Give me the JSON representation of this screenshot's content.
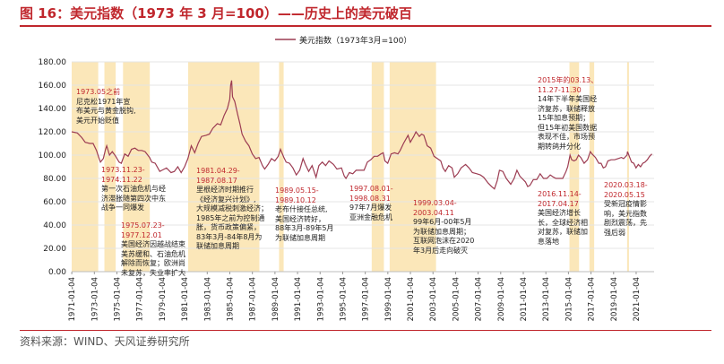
{
  "title": "图 16：美元指数（1973 年 3 月=100）——历史上的美元破百",
  "source": "资料来源：WIND、天风证券研究所",
  "colors": {
    "line": "#9c3c52",
    "shade": "#fbe7b9",
    "title": "#c0272d",
    "period": "#c0272d"
  },
  "annotations": [
    {
      "id": "a1",
      "period": "1973.05之前",
      "lines": [
        "尼克松1971年宣",
        "布美元与黄金脱钩,",
        "美元开始贬值"
      ]
    },
    {
      "id": "a2",
      "period": "1973.11.23-\n1974.11.22",
      "lines": [
        "第一次石油危机与经",
        "济滞胀随第四次中东",
        "战争一同爆发"
      ]
    },
    {
      "id": "a3",
      "period": "1975.07.23-\n1977.12.01",
      "lines": [
        "美国经济因越战结束",
        "美苏缓和、石油危机",
        "解除而恢复；欧洲尚",
        "未复苏，失业率扩大"
      ]
    },
    {
      "id": "a4",
      "period": "1981.04.29-\n1987.08.17",
      "lines": [
        "里根经济时期推行",
        "《经济复兴计划》,",
        "大规模减税刺激经济；",
        "1985年之前为控制通",
        "胀，货币政策偏紧，",
        "83年3月-84年8月为",
        "联储加息周期"
      ]
    },
    {
      "id": "a5",
      "period": "1989.05.15-\n1989.10.12",
      "lines": [
        "老布什接任总统,",
        "美国经济转好，",
        "88年3月-89年5月",
        "为联储加息周期"
      ]
    },
    {
      "id": "a6",
      "period": "1997.08.01-\n1998.08.31",
      "lines": [
        "97年7月爆发",
        "亚洲金融危机"
      ]
    },
    {
      "id": "a7",
      "period": "1999.03.04-\n2003.04.11",
      "lines": [
        "99年6月-00年5月",
        "为联储加息周期；",
        "互联网泡沫在2020",
        "年3月后走向破灭"
      ]
    },
    {
      "id": "a8",
      "period": "2015年的03.13、\n11.27-11.30",
      "lines": [
        "14年下半年美国经",
        "济复苏，联储释放",
        "15年加息预期；",
        "但15年初美国数据",
        "表现不佳，市场预",
        "期转鸽并分化"
      ]
    },
    {
      "id": "a9",
      "period": "2016.11.14-\n2017.04.17",
      "lines": [
        "美国经济增长",
        "长，全球经济相",
        "对复苏，联储加",
        "息落地"
      ]
    },
    {
      "id": "a10",
      "period": "2020.03.18-\n2020.05.15",
      "lines": [
        "受新冠疫情影",
        "响，美元指数",
        "剧烈震荡，先",
        "强后弱"
      ]
    }
  ],
  "chart_data": {
    "type": "line",
    "title": "美元指数（1973年3月=100）",
    "legend": [
      "美元指数（1973年3月=100）"
    ],
    "legend_position": "top-center",
    "xlabel": "",
    "ylabel": "",
    "ylim": [
      0,
      180
    ],
    "yticks": [
      0,
      20,
      40,
      60,
      80,
      100,
      120,
      140,
      160,
      180
    ],
    "ytick_labels": [
      "0.00",
      "20.00",
      "40.00",
      "60.00",
      "80.00",
      "100.00",
      "120.00",
      "140.00",
      "160.00",
      "180.00"
    ],
    "xlim": [
      1971.0,
      2022.6
    ],
    "xticks": [
      "1971-01-04",
      "1973-01-04",
      "1975-01-04",
      "1977-01-04",
      "1979-01-04",
      "1981-01-04",
      "1983-01-04",
      "1985-01-04",
      "1987-01-04",
      "1989-01-04",
      "1991-01-04",
      "1993-01-04",
      "1995-01-04",
      "1997-01-04",
      "1999-01-04",
      "2001-01-04",
      "2003-01-04",
      "2005-01-04",
      "2007-01-04",
      "2009-01-04",
      "2011-01-04",
      "2013-01-04",
      "2015-01-04",
      "2017-01-04",
      "2019-01-04",
      "2021-01-04"
    ],
    "shaded_periods": [
      {
        "start": 1971.0,
        "end": 1973.35,
        "label": "1973.05之前"
      },
      {
        "start": 1973.9,
        "end": 1974.9,
        "label": "1973.11.23-1974.11.22"
      },
      {
        "start": 1975.55,
        "end": 1977.92,
        "label": "1975.07.23-1977.12.01"
      },
      {
        "start": 1981.32,
        "end": 1987.63,
        "label": "1981.04.29-1987.08.17"
      },
      {
        "start": 1989.37,
        "end": 1989.78,
        "label": "1989.05.15-1989.10.12"
      },
      {
        "start": 1997.58,
        "end": 1998.66,
        "label": "1997.08.01-1998.08.31"
      },
      {
        "start": 1999.17,
        "end": 2003.28,
        "label": "1999.03.04-2003.04.11"
      },
      {
        "start": 2015.1,
        "end": 2015.95,
        "label": "2015.03.13、11.27-11.30"
      },
      {
        "start": 2016.87,
        "end": 2017.29,
        "label": "2016.11.14-2017.04.17"
      },
      {
        "start": 2020.21,
        "end": 2020.37,
        "label": "2020.03.18-2020.05.15"
      }
    ],
    "series": [
      {
        "name": "美元指数（1973年3月=100）",
        "points": [
          [
            1971.0,
            120
          ],
          [
            1971.5,
            119
          ],
          [
            1971.9,
            115
          ],
          [
            1972.2,
            111
          ],
          [
            1972.6,
            110
          ],
          [
            1972.9,
            110
          ],
          [
            1973.2,
            104
          ],
          [
            1973.4,
            98
          ],
          [
            1973.55,
            94
          ],
          [
            1973.8,
            97
          ],
          [
            1974.0,
            105
          ],
          [
            1974.1,
            108
          ],
          [
            1974.35,
            100
          ],
          [
            1974.6,
            103
          ],
          [
            1974.9,
            99
          ],
          [
            1975.2,
            94
          ],
          [
            1975.4,
            93
          ],
          [
            1975.7,
            101
          ],
          [
            1976.0,
            99
          ],
          [
            1976.3,
            105
          ],
          [
            1976.6,
            106
          ],
          [
            1976.9,
            104
          ],
          [
            1977.2,
            104
          ],
          [
            1977.5,
            103
          ],
          [
            1977.9,
            98
          ],
          [
            1978.1,
            94
          ],
          [
            1978.4,
            93
          ],
          [
            1978.8,
            86
          ],
          [
            1979.0,
            87
          ],
          [
            1979.4,
            89
          ],
          [
            1979.8,
            85
          ],
          [
            1980.1,
            86
          ],
          [
            1980.4,
            90
          ],
          [
            1980.7,
            85
          ],
          [
            1981.0,
            90
          ],
          [
            1981.3,
            97
          ],
          [
            1981.6,
            108
          ],
          [
            1981.9,
            102
          ],
          [
            1982.2,
            110
          ],
          [
            1982.5,
            116
          ],
          [
            1982.9,
            117
          ],
          [
            1983.2,
            118
          ],
          [
            1983.5,
            123
          ],
          [
            1983.9,
            127
          ],
          [
            1984.2,
            126
          ],
          [
            1984.5,
            134
          ],
          [
            1984.8,
            140
          ],
          [
            1985.0,
            148
          ],
          [
            1985.08,
            160
          ],
          [
            1985.17,
            164
          ],
          [
            1985.25,
            150
          ],
          [
            1985.45,
            146
          ],
          [
            1985.7,
            135
          ],
          [
            1985.9,
            127
          ],
          [
            1986.1,
            118
          ],
          [
            1986.4,
            112
          ],
          [
            1986.7,
            108
          ],
          [
            1987.0,
            101
          ],
          [
            1987.3,
            97
          ],
          [
            1987.6,
            98
          ],
          [
            1987.9,
            91
          ],
          [
            1988.1,
            88
          ],
          [
            1988.4,
            92
          ],
          [
            1988.7,
            97
          ],
          [
            1989.0,
            95
          ],
          [
            1989.3,
            99
          ],
          [
            1989.5,
            105
          ],
          [
            1989.8,
            98
          ],
          [
            1990.0,
            94
          ],
          [
            1990.3,
            93
          ],
          [
            1990.6,
            89
          ],
          [
            1990.9,
            83
          ],
          [
            1991.2,
            87
          ],
          [
            1991.5,
            97
          ],
          [
            1991.7,
            92
          ],
          [
            1992.0,
            86
          ],
          [
            1992.3,
            91
          ],
          [
            1992.65,
            81
          ],
          [
            1992.9,
            91
          ],
          [
            1993.2,
            94
          ],
          [
            1993.5,
            91
          ],
          [
            1993.8,
            95
          ],
          [
            1994.2,
            92
          ],
          [
            1994.5,
            88
          ],
          [
            1994.9,
            89
          ],
          [
            1995.15,
            82
          ],
          [
            1995.3,
            80
          ],
          [
            1995.6,
            85
          ],
          [
            1995.9,
            84
          ],
          [
            1996.2,
            87
          ],
          [
            1996.6,
            87
          ],
          [
            1996.9,
            87
          ],
          [
            1997.2,
            94
          ],
          [
            1997.5,
            96
          ],
          [
            1997.8,
            99
          ],
          [
            1998.1,
            99
          ],
          [
            1998.4,
            101
          ],
          [
            1998.6,
            102
          ],
          [
            1998.75,
            95
          ],
          [
            1999.0,
            93
          ],
          [
            1999.3,
            101
          ],
          [
            1999.6,
            102
          ],
          [
            1999.9,
            101
          ],
          [
            2000.1,
            104
          ],
          [
            2000.4,
            110
          ],
          [
            2000.8,
            117
          ],
          [
            2001.0,
            111
          ],
          [
            2001.3,
            116
          ],
          [
            2001.5,
            120
          ],
          [
            2001.8,
            116
          ],
          [
            2002.0,
            118
          ],
          [
            2002.2,
            117
          ],
          [
            2002.5,
            108
          ],
          [
            2002.8,
            106
          ],
          [
            2003.1,
            99
          ],
          [
            2003.4,
            97
          ],
          [
            2003.7,
            95
          ],
          [
            2003.9,
            89
          ],
          [
            2004.1,
            86
          ],
          [
            2004.4,
            91
          ],
          [
            2004.7,
            89
          ],
          [
            2004.9,
            81
          ],
          [
            2005.2,
            84
          ],
          [
            2005.5,
            89
          ],
          [
            2005.9,
            92
          ],
          [
            2006.2,
            89
          ],
          [
            2006.5,
            85
          ],
          [
            2006.9,
            84
          ],
          [
            2007.2,
            83
          ],
          [
            2007.5,
            81
          ],
          [
            2007.9,
            76
          ],
          [
            2008.2,
            73
          ],
          [
            2008.45,
            71
          ],
          [
            2008.7,
            78
          ],
          [
            2008.9,
            87
          ],
          [
            2009.2,
            86
          ],
          [
            2009.5,
            80
          ],
          [
            2009.9,
            75
          ],
          [
            2010.2,
            80
          ],
          [
            2010.45,
            87
          ],
          [
            2010.7,
            82
          ],
          [
            2010.9,
            80
          ],
          [
            2011.2,
            77
          ],
          [
            2011.4,
            73
          ],
          [
            2011.6,
            74
          ],
          [
            2011.9,
            79
          ],
          [
            2012.2,
            79
          ],
          [
            2012.5,
            84
          ],
          [
            2012.8,
            80
          ],
          [
            2013.1,
            80
          ],
          [
            2013.4,
            83
          ],
          [
            2013.7,
            81
          ],
          [
            2013.9,
            80
          ],
          [
            2014.2,
            80
          ],
          [
            2014.5,
            80
          ],
          [
            2014.8,
            86
          ],
          [
            2014.95,
            90
          ],
          [
            2015.15,
            100
          ],
          [
            2015.3,
            96
          ],
          [
            2015.5,
            95
          ],
          [
            2015.7,
            96
          ],
          [
            2015.9,
            100
          ],
          [
            2016.1,
            98
          ],
          [
            2016.4,
            93
          ],
          [
            2016.7,
            96
          ],
          [
            2016.95,
            103
          ],
          [
            2017.1,
            101
          ],
          [
            2017.4,
            98
          ],
          [
            2017.7,
            93
          ],
          [
            2017.9,
            93
          ],
          [
            2018.1,
            89
          ],
          [
            2018.3,
            90
          ],
          [
            2018.5,
            95
          ],
          [
            2018.8,
            96
          ],
          [
            2019.1,
            96
          ],
          [
            2019.4,
            97
          ],
          [
            2019.7,
            98
          ],
          [
            2019.9,
            97
          ],
          [
            2020.2,
            100
          ],
          [
            2020.24,
            103
          ],
          [
            2020.4,
            99
          ],
          [
            2020.6,
            94
          ],
          [
            2020.8,
            93
          ],
          [
            2021.0,
            89
          ],
          [
            2021.2,
            92
          ],
          [
            2021.4,
            90
          ],
          [
            2021.6,
            93
          ],
          [
            2021.8,
            94
          ],
          [
            2022.0,
            96
          ],
          [
            2022.2,
            99
          ],
          [
            2022.4,
            101
          ]
        ]
      }
    ]
  }
}
